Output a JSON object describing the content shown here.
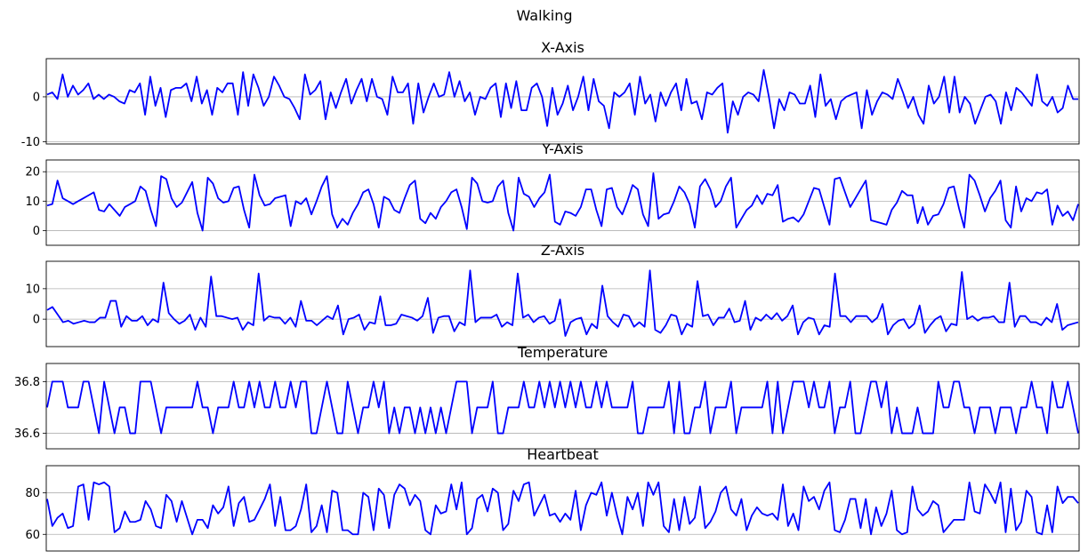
{
  "figure": {
    "title": "Walking"
  },
  "chart_data": [
    {
      "type": "line",
      "title": "X-Axis",
      "color": "#0000ff",
      "ylim": [
        -10.5,
        8.5
      ],
      "yticks": [
        -10,
        0
      ],
      "grid": "horizontal",
      "values": [
        0.5,
        1,
        -0.5,
        5,
        0,
        2.5,
        0.5,
        1.5,
        3,
        -0.5,
        0.5,
        -0.5,
        0.5,
        0,
        -1,
        -1.5,
        1.5,
        1,
        3,
        -4,
        4.5,
        -2,
        2,
        -4.5,
        1.5,
        2,
        2,
        3,
        -1,
        4.5,
        -1.5,
        1.5,
        -4,
        2,
        1,
        3,
        3,
        -4,
        5.5,
        -2,
        5,
        2,
        -2,
        0,
        4.5,
        2.5,
        0,
        -0.5,
        -2.5,
        -5,
        5,
        0.5,
        1.5,
        3.5,
        -5,
        1,
        -2.5,
        1,
        4,
        -1.5,
        1.5,
        4,
        -1,
        4,
        0,
        -0.5,
        -4,
        4.5,
        1,
        1,
        3,
        -6,
        3,
        -3.5,
        0,
        3,
        0,
        0.5,
        5.5,
        0,
        3.5,
        -1,
        1,
        -4,
        0,
        -0.5,
        2,
        3,
        -4.5,
        3,
        -2.5,
        3.5,
        -3,
        -3,
        2,
        3,
        0,
        -6.5,
        2,
        -4,
        -1.5,
        2.5,
        -3,
        0,
        4.5,
        -3,
        4,
        -1,
        -2,
        -7,
        1,
        0,
        1,
        3,
        -4,
        4.5,
        -1.5,
        0.5,
        -5.5,
        1,
        -2,
        1,
        3,
        -3,
        4,
        -1.5,
        -1,
        -5,
        1,
        0.5,
        2,
        3,
        -8,
        -1,
        -4,
        0,
        1,
        0.5,
        -1,
        6,
        0,
        -7,
        -0.5,
        -3,
        1,
        0.5,
        -1.5,
        -1.5,
        2.5,
        -4.5,
        5,
        -2,
        -0.5,
        -5,
        -1,
        0,
        0.5,
        1,
        -7,
        1.5,
        -4,
        -1,
        1,
        0.5,
        -0.5,
        4,
        1,
        -2.5,
        0,
        -4,
        -6,
        2.5,
        -1.5,
        0,
        4.5,
        -3.5,
        4.5,
        -3.5,
        0,
        -1.5,
        -6,
        -3,
        0,
        0.5,
        -1,
        -6,
        1,
        -3,
        2,
        1,
        -0.5,
        -2,
        5,
        -1,
        -2,
        0,
        -3.5,
        -2.5,
        2.5,
        -0.5,
        -0.5
      ]
    },
    {
      "type": "line",
      "title": "Y-Axis",
      "color": "#0000ff",
      "ylim": [
        -5,
        24
      ],
      "yticks": [
        0,
        10,
        20
      ],
      "grid": "horizontal",
      "values": [
        8.5,
        9,
        17,
        11,
        10,
        9,
        10,
        11,
        12,
        13,
        7,
        6.5,
        9,
        7,
        5,
        8,
        9,
        10,
        15,
        13.5,
        7,
        1.5,
        18.5,
        17.5,
        11,
        8,
        9.5,
        13,
        16.5,
        6,
        0,
        18,
        16,
        11,
        9.5,
        10,
        14.5,
        15,
        7,
        1,
        19,
        12,
        8.5,
        9,
        11,
        11.5,
        12,
        1.5,
        10,
        9,
        11,
        5.5,
        10,
        15,
        18.5,
        5.5,
        1,
        4,
        2,
        6,
        9,
        13,
        14,
        9,
        1,
        11.5,
        10.5,
        7,
        6,
        11,
        15.5,
        17,
        4,
        2.5,
        6,
        4,
        8,
        10,
        13,
        14,
        8,
        0.5,
        18,
        16,
        10,
        9.5,
        10,
        15,
        17,
        6,
        0,
        18,
        12.5,
        11.5,
        8,
        11,
        13,
        19,
        3,
        2,
        6.5,
        6,
        5,
        8,
        14,
        14,
        7,
        1.5,
        14,
        14.5,
        8,
        5.5,
        10,
        15.5,
        14,
        5.5,
        1.5,
        19.5,
        4,
        5.5,
        6,
        10,
        15,
        13,
        9,
        1,
        15,
        17.5,
        14,
        8,
        10,
        15,
        18,
        1,
        4,
        7,
        8.5,
        12,
        9,
        12.5,
        12,
        15.5,
        3,
        4,
        4.5,
        3,
        5.5,
        10,
        14.5,
        14,
        8,
        2,
        17.5,
        18,
        13,
        8,
        11,
        14,
        17,
        3.5,
        3,
        2.5,
        2,
        7,
        9.5,
        13.5,
        12,
        12,
        2.5,
        8,
        2,
        5,
        5.5,
        9,
        14.5,
        15,
        7.5,
        1,
        19,
        17,
        12,
        6.5,
        11,
        13.5,
        17,
        3.5,
        1,
        15,
        6.5,
        11,
        10,
        13,
        12.5,
        14,
        2,
        8.5,
        5,
        6.5,
        3.5,
        9
      ]
    },
    {
      "type": "line",
      "title": "Z-Axis",
      "color": "#0000ff",
      "ylim": [
        -9,
        19
      ],
      "yticks": [
        0,
        10
      ],
      "grid": "horizontal",
      "values": [
        3,
        4,
        1.5,
        -1,
        -0.5,
        -1.5,
        -1,
        -0.5,
        -1,
        -1,
        0.5,
        0.5,
        6,
        6,
        -2.5,
        1,
        -0.5,
        -0.5,
        1,
        -2,
        0,
        -1,
        12,
        2,
        0,
        -1.5,
        -0.5,
        1.5,
        -3.5,
        0.5,
        -2.5,
        14,
        1,
        1,
        0.5,
        0,
        0.5,
        -3.5,
        -1,
        -2,
        15,
        -0.5,
        1,
        0.5,
        0.5,
        -1.5,
        0.5,
        -2.5,
        6,
        -0.5,
        -0.5,
        -2,
        -0.5,
        1,
        0,
        4.5,
        -5,
        0,
        0.5,
        1.5,
        -3.5,
        -1,
        -1.5,
        7.5,
        -2,
        -2,
        -1.5,
        1.5,
        1,
        0.5,
        -0.5,
        1,
        7,
        -4.5,
        0.5,
        1,
        1,
        -4,
        -1,
        -2,
        16,
        -1,
        0.5,
        0.5,
        0.5,
        1.5,
        -2.5,
        -1,
        -2,
        15,
        0.5,
        1.5,
        -1,
        0.5,
        1,
        -1.5,
        -0.5,
        6.5,
        -5.5,
        -1,
        0,
        0.5,
        -5,
        -1.5,
        -3,
        11,
        1,
        -1,
        -2.5,
        1.5,
        1,
        -2.5,
        -1,
        -2.5,
        16,
        -3.5,
        -4.5,
        -2,
        1.5,
        1,
        -5,
        -1.5,
        -2.5,
        12.5,
        1,
        1.5,
        -2,
        0.5,
        0.5,
        3.5,
        -1,
        -0.5,
        6,
        -3.5,
        0.5,
        -0.5,
        1.5,
        0,
        2,
        -0.5,
        1,
        4.5,
        -5,
        -1,
        0.5,
        0,
        -5,
        -2,
        -2.5,
        15,
        1,
        1,
        -1,
        1,
        1,
        1,
        -1,
        0.5,
        5,
        -5,
        -2,
        -0.5,
        0,
        -3,
        -1.5,
        4.5,
        -4.5,
        -2,
        0,
        1,
        -4,
        -1.5,
        -2,
        15.5,
        0,
        1,
        -0.5,
        0.5,
        0.5,
        1,
        -1,
        -1,
        12,
        -2.5,
        1,
        1,
        -1,
        -1,
        -2,
        0.5,
        -1,
        5,
        -3.5,
        -2,
        -1.5,
        -1
      ]
    },
    {
      "type": "line",
      "title": "Temperature",
      "color": "#0000ff",
      "ylim": [
        36.54,
        36.87
      ],
      "yticks": [
        36.6,
        36.8
      ],
      "grid": "horizontal",
      "values": [
        36.7,
        36.8,
        36.8,
        36.8,
        36.7,
        36.7,
        36.7,
        36.8,
        36.8,
        36.7,
        36.6,
        36.8,
        36.7,
        36.6,
        36.7,
        36.7,
        36.6,
        36.6,
        36.8,
        36.8,
        36.8,
        36.7,
        36.6,
        36.7,
        36.7,
        36.7,
        36.7,
        36.7,
        36.7,
        36.8,
        36.7,
        36.7,
        36.6,
        36.7,
        36.7,
        36.7,
        36.8,
        36.7,
        36.7,
        36.8,
        36.7,
        36.8,
        36.7,
        36.7,
        36.8,
        36.7,
        36.7,
        36.8,
        36.7,
        36.8,
        36.8,
        36.6,
        36.6,
        36.7,
        36.8,
        36.7,
        36.6,
        36.6,
        36.8,
        36.7,
        36.6,
        36.7,
        36.7,
        36.8,
        36.7,
        36.8,
        36.6,
        36.7,
        36.6,
        36.7,
        36.7,
        36.6,
        36.7,
        36.6,
        36.7,
        36.6,
        36.7,
        36.6,
        36.7,
        36.8,
        36.8,
        36.8,
        36.6,
        36.7,
        36.7,
        36.7,
        36.8,
        36.6,
        36.6,
        36.7,
        36.7,
        36.7,
        36.8,
        36.7,
        36.7,
        36.8,
        36.7,
        36.8,
        36.7,
        36.8,
        36.7,
        36.8,
        36.7,
        36.8,
        36.7,
        36.7,
        36.8,
        36.7,
        36.8,
        36.7,
        36.7,
        36.7,
        36.7,
        36.8,
        36.6,
        36.6,
        36.7,
        36.7,
        36.7,
        36.7,
        36.8,
        36.6,
        36.8,
        36.6,
        36.6,
        36.7,
        36.7,
        36.8,
        36.6,
        36.7,
        36.7,
        36.7,
        36.8,
        36.6,
        36.7,
        36.7,
        36.7,
        36.7,
        36.7,
        36.8,
        36.6,
        36.8,
        36.6,
        36.7,
        36.8,
        36.8,
        36.8,
        36.7,
        36.8,
        36.7,
        36.7,
        36.8,
        36.6,
        36.7,
        36.7,
        36.8,
        36.6,
        36.6,
        36.7,
        36.8,
        36.8,
        36.7,
        36.8,
        36.6,
        36.7,
        36.6,
        36.6,
        36.6,
        36.7,
        36.6,
        36.6,
        36.6,
        36.8,
        36.7,
        36.7,
        36.8,
        36.8,
        36.7,
        36.7,
        36.6,
        36.7,
        36.7,
        36.7,
        36.6,
        36.7,
        36.7,
        36.7,
        36.6,
        36.7,
        36.7,
        36.8,
        36.7,
        36.7,
        36.6,
        36.8,
        36.7,
        36.7,
        36.8,
        36.7,
        36.6
      ]
    },
    {
      "type": "line",
      "title": "Heartbeat",
      "color": "#0000ff",
      "ylim": [
        52,
        93
      ],
      "yticks": [
        60,
        80
      ],
      "grid": "horizontal",
      "values": [
        77,
        64,
        68,
        70,
        63,
        64,
        83,
        84,
        67,
        85,
        84,
        85,
        83,
        61,
        63,
        71,
        66,
        66,
        67,
        76,
        72,
        64,
        63,
        79,
        76,
        66,
        76,
        68,
        60,
        67,
        67,
        63,
        74,
        70,
        73,
        83,
        64,
        75,
        78,
        66,
        67,
        72,
        77,
        84,
        64,
        78,
        62,
        62,
        64,
        72,
        84,
        61,
        64,
        74,
        61,
        81,
        80,
        62,
        62,
        60,
        60,
        80,
        78,
        62,
        82,
        79,
        63,
        79,
        84,
        82,
        74,
        79,
        76,
        62,
        60,
        74,
        70,
        71,
        84,
        72,
        85,
        60,
        63,
        77,
        79,
        71,
        82,
        80,
        62,
        65,
        81,
        76,
        84,
        85,
        69,
        74,
        79,
        69,
        70,
        66,
        70,
        67,
        81,
        62,
        74,
        80,
        79,
        85,
        69,
        80,
        69,
        60,
        78,
        72,
        80,
        64,
        85,
        79,
        85,
        64,
        61,
        77,
        62,
        78,
        65,
        68,
        83,
        63,
        66,
        71,
        80,
        83,
        72,
        69,
        77,
        62,
        69,
        73,
        70,
        69,
        70,
        67,
        84,
        64,
        70,
        62,
        83,
        76,
        78,
        72,
        81,
        85,
        62,
        61,
        67,
        77,
        77,
        63,
        77,
        60,
        73,
        64,
        70,
        81,
        62,
        60,
        61,
        83,
        72,
        69,
        71,
        76,
        74,
        61,
        64,
        67,
        67,
        67,
        85,
        71,
        70,
        84,
        80,
        75,
        85,
        61,
        82,
        62,
        66,
        81,
        78,
        61,
        60,
        74,
        61,
        83,
        75,
        78,
        78,
        75
      ]
    }
  ]
}
